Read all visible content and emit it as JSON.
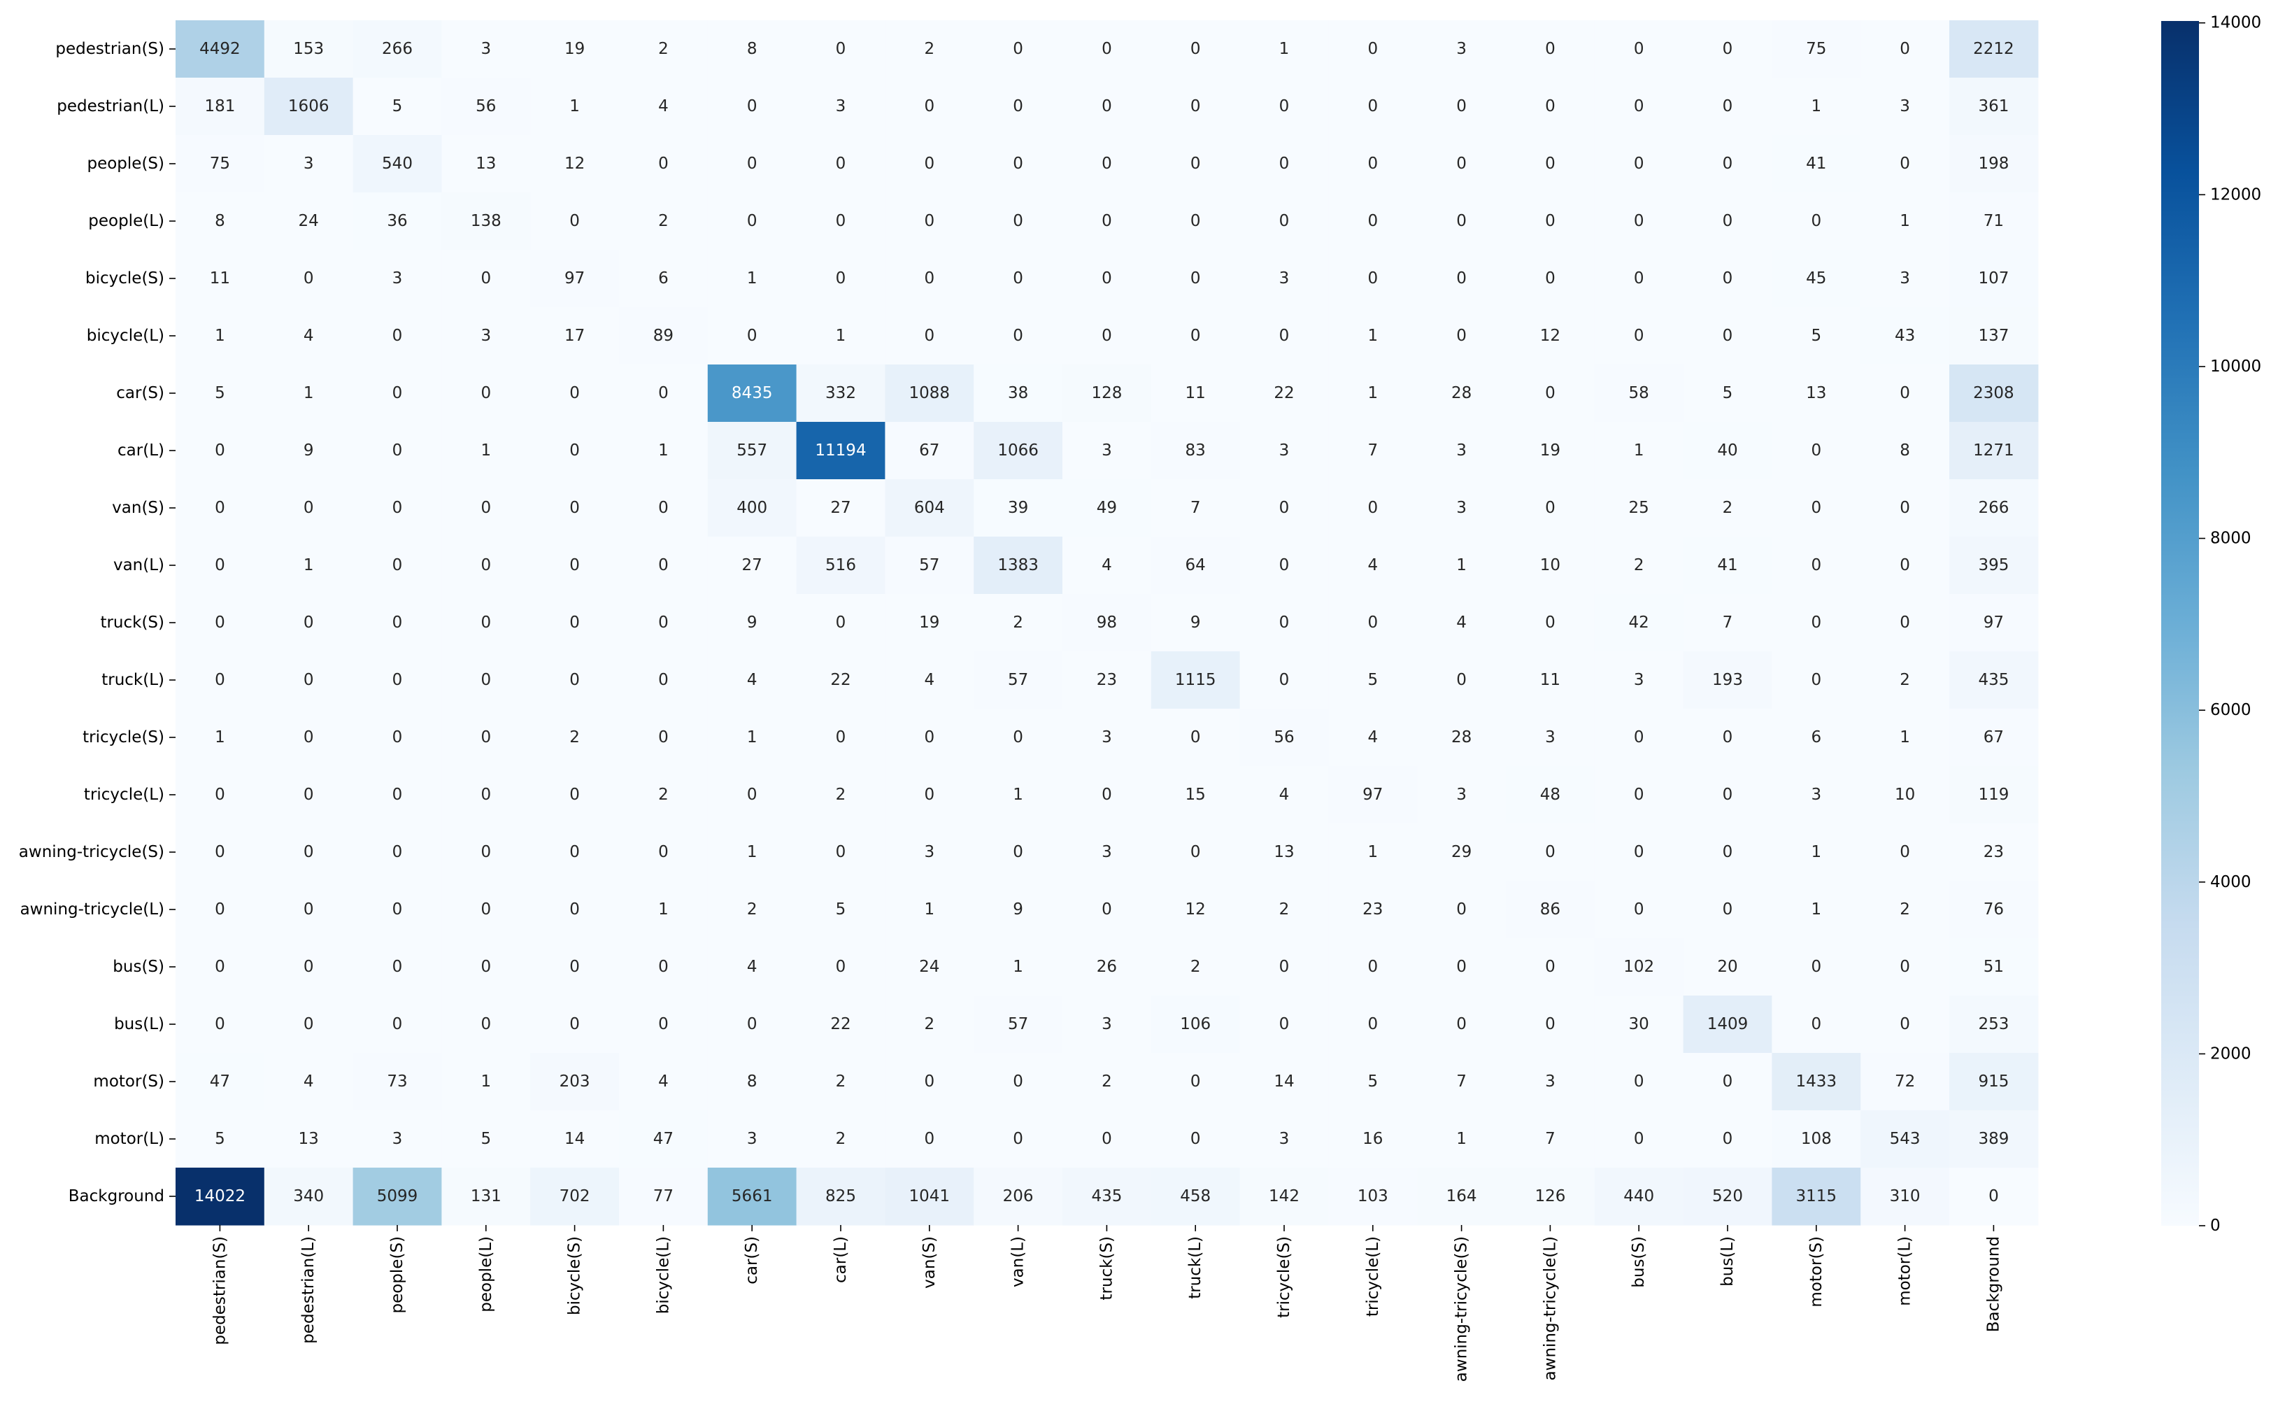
{
  "chart_data": {
    "type": "heatmap",
    "title": "",
    "xlabel": "",
    "ylabel": "",
    "rows": [
      "pedestrian(S)",
      "pedestrian(L)",
      "people(S)",
      "people(L)",
      "bicycle(S)",
      "bicycle(L)",
      "car(S)",
      "car(L)",
      "van(S)",
      "van(L)",
      "truck(S)",
      "truck(L)",
      "tricycle(S)",
      "tricycle(L)",
      "awning-tricycle(S)",
      "awning-tricycle(L)",
      "bus(S)",
      "bus(L)",
      "motor(S)",
      "motor(L)",
      "Background"
    ],
    "columns": [
      "pedestrian(S)",
      "pedestrian(L)",
      "people(S)",
      "people(L)",
      "bicycle(S)",
      "bicycle(L)",
      "car(S)",
      "car(L)",
      "van(S)",
      "van(L)",
      "truck(S)",
      "truck(L)",
      "tricycle(S)",
      "tricycle(L)",
      "awning-tricycle(S)",
      "awning-tricycle(L)",
      "bus(S)",
      "bus(L)",
      "motor(S)",
      "motor(L)",
      "Background"
    ],
    "values": [
      [
        4492,
        153,
        266,
        3,
        19,
        2,
        8,
        0,
        2,
        0,
        0,
        0,
        1,
        0,
        3,
        0,
        0,
        0,
        75,
        0,
        2212
      ],
      [
        181,
        1606,
        5,
        56,
        1,
        4,
        0,
        3,
        0,
        0,
        0,
        0,
        0,
        0,
        0,
        0,
        0,
        0,
        1,
        3,
        361
      ],
      [
        75,
        3,
        540,
        13,
        12,
        0,
        0,
        0,
        0,
        0,
        0,
        0,
        0,
        0,
        0,
        0,
        0,
        0,
        41,
        0,
        198
      ],
      [
        8,
        24,
        36,
        138,
        0,
        2,
        0,
        0,
        0,
        0,
        0,
        0,
        0,
        0,
        0,
        0,
        0,
        0,
        0,
        1,
        71
      ],
      [
        11,
        0,
        3,
        0,
        97,
        6,
        1,
        0,
        0,
        0,
        0,
        0,
        3,
        0,
        0,
        0,
        0,
        0,
        45,
        3,
        107
      ],
      [
        1,
        4,
        0,
        3,
        17,
        89,
        0,
        1,
        0,
        0,
        0,
        0,
        0,
        1,
        0,
        12,
        0,
        0,
        5,
        43,
        137
      ],
      [
        5,
        1,
        0,
        0,
        0,
        0,
        8435,
        332,
        1088,
        38,
        128,
        11,
        22,
        1,
        28,
        0,
        58,
        5,
        13,
        0,
        2308
      ],
      [
        0,
        9,
        0,
        1,
        0,
        1,
        557,
        11194,
        67,
        1066,
        3,
        83,
        3,
        7,
        3,
        19,
        1,
        40,
        0,
        8,
        1271
      ],
      [
        0,
        0,
        0,
        0,
        0,
        0,
        400,
        27,
        604,
        39,
        49,
        7,
        0,
        0,
        3,
        0,
        25,
        2,
        0,
        0,
        266
      ],
      [
        0,
        1,
        0,
        0,
        0,
        0,
        27,
        516,
        57,
        1383,
        4,
        64,
        0,
        4,
        1,
        10,
        2,
        41,
        0,
        0,
        395
      ],
      [
        0,
        0,
        0,
        0,
        0,
        0,
        9,
        0,
        19,
        2,
        98,
        9,
        0,
        0,
        4,
        0,
        42,
        7,
        0,
        0,
        97
      ],
      [
        0,
        0,
        0,
        0,
        0,
        0,
        4,
        22,
        4,
        57,
        23,
        1115,
        0,
        5,
        0,
        11,
        3,
        193,
        0,
        2,
        435
      ],
      [
        1,
        0,
        0,
        0,
        2,
        0,
        1,
        0,
        0,
        0,
        3,
        0,
        56,
        4,
        28,
        3,
        0,
        0,
        6,
        1,
        67
      ],
      [
        0,
        0,
        0,
        0,
        0,
        2,
        0,
        2,
        0,
        1,
        0,
        15,
        4,
        97,
        3,
        48,
        0,
        0,
        3,
        10,
        119
      ],
      [
        0,
        0,
        0,
        0,
        0,
        0,
        1,
        0,
        3,
        0,
        3,
        0,
        13,
        1,
        29,
        0,
        0,
        0,
        1,
        0,
        23
      ],
      [
        0,
        0,
        0,
        0,
        0,
        1,
        2,
        5,
        1,
        9,
        0,
        12,
        2,
        23,
        0,
        86,
        0,
        0,
        1,
        2,
        76
      ],
      [
        0,
        0,
        0,
        0,
        0,
        0,
        4,
        0,
        24,
        1,
        26,
        2,
        0,
        0,
        0,
        0,
        102,
        20,
        0,
        0,
        51
      ],
      [
        0,
        0,
        0,
        0,
        0,
        0,
        0,
        22,
        2,
        57,
        3,
        106,
        0,
        0,
        0,
        0,
        30,
        1409,
        0,
        0,
        253
      ],
      [
        47,
        4,
        73,
        1,
        203,
        4,
        8,
        2,
        0,
        0,
        2,
        0,
        14,
        5,
        7,
        3,
        0,
        0,
        1433,
        72,
        915
      ],
      [
        5,
        13,
        3,
        5,
        14,
        47,
        3,
        2,
        0,
        0,
        0,
        0,
        3,
        16,
        1,
        7,
        0,
        0,
        108,
        543,
        389
      ],
      [
        14022,
        340,
        5099,
        131,
        702,
        77,
        5661,
        825,
        1041,
        206,
        435,
        458,
        142,
        103,
        164,
        126,
        440,
        520,
        3115,
        310,
        0
      ]
    ],
    "value_format": "integer",
    "colormap": "Blues",
    "color_low": "#f7fbff",
    "color_high": "#08306b",
    "vmin": 0,
    "vmax": 14022,
    "colorbar": {
      "ticks": [
        0,
        2000,
        4000,
        6000,
        8000,
        10000,
        12000,
        14000
      ],
      "labels": [
        "0",
        "2000",
        "4000",
        "6000",
        "8000",
        "10000",
        "12000",
        "14000"
      ],
      "placement": "right"
    },
    "grid": false,
    "legend": "none"
  }
}
